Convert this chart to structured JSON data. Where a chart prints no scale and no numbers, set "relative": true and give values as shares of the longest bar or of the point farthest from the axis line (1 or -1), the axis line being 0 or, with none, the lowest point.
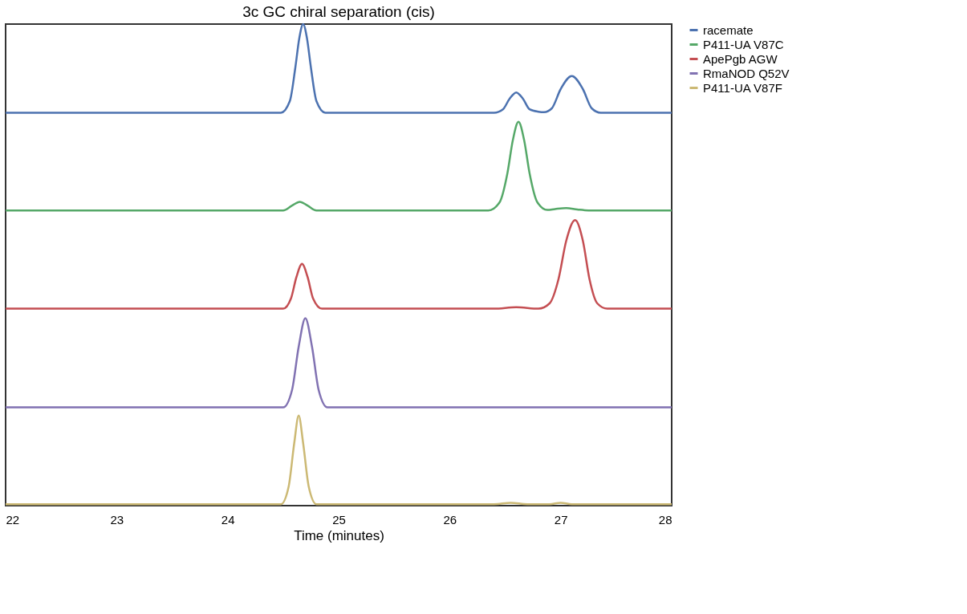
{
  "chart_data": {
    "type": "line",
    "title": "3c GC chiral separation (cis)",
    "xlabel": "Time (minutes)",
    "relative": true,
    "xlim": [
      22,
      28
    ],
    "xticks": [
      22,
      23,
      24,
      25,
      26,
      27,
      28
    ],
    "grid": false,
    "legend": "top right",
    "marker": "none",
    "line_style": "solid",
    "series": [
      {
        "name": "racemate",
        "color": "#4c72b0",
        "x": [
          22,
          24.48,
          24.56,
          24.61,
          24.645,
          24.68,
          24.715,
          24.75,
          24.8,
          24.88,
          26.4,
          26.48,
          26.54,
          26.6,
          26.66,
          26.72,
          26.8,
          26.85,
          26.92,
          27.0,
          27.1,
          27.2,
          27.28,
          27.36,
          28
        ],
        "values": [
          0.816,
          0.816,
          0.84,
          0.91,
          0.97,
          1.0,
          0.97,
          0.91,
          0.84,
          0.816,
          0.816,
          0.823,
          0.845,
          0.858,
          0.845,
          0.823,
          0.818,
          0.817,
          0.825,
          0.865,
          0.892,
          0.865,
          0.825,
          0.816,
          0.816
        ]
      },
      {
        "name": "P411-UA V87C",
        "color": "#55a868",
        "x": [
          22,
          24.5,
          24.58,
          24.65,
          24.72,
          24.8,
          26.35,
          26.45,
          26.52,
          26.57,
          26.62,
          26.67,
          26.72,
          26.79,
          26.88,
          26.95,
          27.05,
          27.15,
          27.25,
          28
        ],
        "values": [
          0.613,
          0.613,
          0.623,
          0.631,
          0.623,
          0.613,
          0.613,
          0.63,
          0.69,
          0.76,
          0.797,
          0.76,
          0.69,
          0.63,
          0.614,
          0.616,
          0.618,
          0.615,
          0.613,
          0.613
        ]
      },
      {
        "name": "ApePgb AGW",
        "color": "#c44e52",
        "x": [
          22,
          24.5,
          24.57,
          24.62,
          24.67,
          24.72,
          24.77,
          24.85,
          26.4,
          26.6,
          26.8,
          26.9,
          26.98,
          27.05,
          27.13,
          27.2,
          27.26,
          27.33,
          27.42,
          28
        ],
        "values": [
          0.409,
          0.409,
          0.43,
          0.475,
          0.502,
          0.475,
          0.43,
          0.409,
          0.409,
          0.412,
          0.409,
          0.42,
          0.47,
          0.55,
          0.593,
          0.55,
          0.47,
          0.42,
          0.409,
          0.409
        ]
      },
      {
        "name": "RmaNOD Q52V",
        "color": "#8172b2",
        "x": [
          22,
          24.5,
          24.58,
          24.64,
          24.7,
          24.76,
          24.82,
          24.9,
          28
        ],
        "values": [
          0.204,
          0.204,
          0.24,
          0.33,
          0.389,
          0.33,
          0.24,
          0.204,
          0.204
        ]
      },
      {
        "name": "P411-UA V87F",
        "color": "#ccb974",
        "x": [
          22,
          24.48,
          24.55,
          24.6,
          24.64,
          24.68,
          24.73,
          24.8,
          26.4,
          26.55,
          26.7,
          26.9,
          27.0,
          27.1,
          28
        ],
        "values": [
          0.003,
          0.003,
          0.04,
          0.13,
          0.187,
          0.13,
          0.04,
          0.003,
          0.003,
          0.006,
          0.003,
          0.003,
          0.006,
          0.003,
          0.003
        ]
      }
    ]
  }
}
